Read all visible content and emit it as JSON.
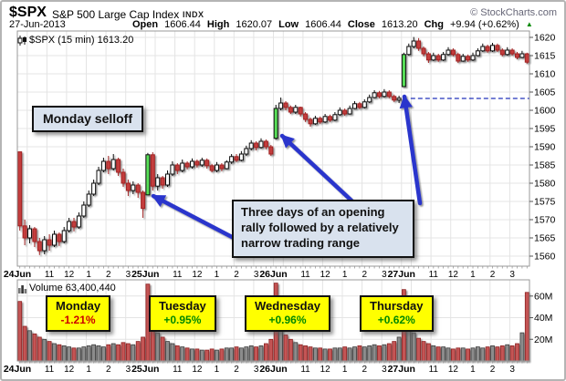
{
  "header": {
    "symbol": "$SPX",
    "name": "S&P 500 Large Cap Index",
    "exchange": "INDX",
    "credit": "© StockCharts.com",
    "date": "27-Jun-2013",
    "open_label": "Open",
    "open": "1606.44",
    "high_label": "High",
    "high": "1620.07",
    "low_label": "Low",
    "low": "1606.44",
    "close_label": "Close",
    "close": "1613.20",
    "chg_label": "Chg",
    "chg": "+9.94 (+0.62%)",
    "chg_direction": "up",
    "chg_triangle": "▲"
  },
  "main_chart_label": "$SPX (15 min) 1613.20",
  "volume_label": "Volume 63,400,440",
  "annotations": {
    "monday_selloff": "Monday selloff",
    "three_days": "Three days of an opening rally followed by a relatively narrow trading range",
    "arrows": [
      {
        "from": [
          254,
          259
        ],
        "to": [
          166,
          213
        ],
        "points_at": "25Jun opening green candle"
      },
      {
        "from": [
          383,
          218
        ],
        "to": [
          307,
          147
        ],
        "points_at": "26Jun opening green candle"
      },
      {
        "from": [
          458,
          221
        ],
        "to": [
          441,
          104
        ],
        "points_at": "27Jun opening gap at dashed line"
      }
    ]
  },
  "day_labels": [
    {
      "name": "Monday",
      "pct": "-1.21%",
      "color": "#cc0000"
    },
    {
      "name": "Tuesday",
      "pct": "+0.95%",
      "color": "#008800"
    },
    {
      "name": "Wednesday",
      "pct": "+0.96%",
      "color": "#008800"
    },
    {
      "name": "Thursday",
      "pct": "+0.62%",
      "color": "#008800"
    }
  ],
  "colors": {
    "up_candle": "#ffffff",
    "down_candle": "#c43c3c",
    "down_stroke": "#a02424",
    "highlight_candle": "#58e058",
    "candle_stroke": "#111111",
    "volume_up": "#8c8c8c",
    "volume_up_stroke": "#3c3c3c",
    "volume_down": "#c45454",
    "volume_down_stroke": "#8c2424",
    "arrow": "#2a35cc",
    "grid": "#e4e4e4",
    "border": "#999999",
    "dashed_line": "#2233bb",
    "positive": "#008800",
    "negative": "#cc0000"
  },
  "chart_data": {
    "type": "candlestick+volume",
    "symbol": "$SPX",
    "timeframe": "15 min",
    "last_price": 1613.2,
    "y_axis": {
      "ticks": [
        1560,
        1565,
        1570,
        1575,
        1580,
        1585,
        1590,
        1595,
        1600,
        1605,
        1610,
        1615,
        1620
      ],
      "min": 1557.25,
      "max": 1621.75
    },
    "volume_axis": {
      "ticks": [
        {
          "v": 20,
          "label": "20M"
        },
        {
          "v": 40,
          "label": "40M"
        },
        {
          "v": 60,
          "label": "60M"
        }
      ],
      "max": 75
    },
    "x_axis": {
      "hour_labels": [
        "11",
        "12",
        "1",
        "2",
        "3"
      ],
      "hour_bar_indices": [
        6,
        10,
        14,
        18,
        22
      ],
      "bars_per_day": 26
    },
    "dashed_line": {
      "price": 1603.25,
      "from_bar": 79
    },
    "highlight_first_bar_of_day": true,
    "days": [
      {
        "date": "24Jun",
        "weekday": "Monday",
        "change_pct": "-1.21%",
        "candles": [
          [
            1588.6,
            1588.6,
            1567.0,
            1568.3
          ],
          [
            1568.3,
            1570.0,
            1563.0,
            1565.0
          ],
          [
            1565.0,
            1568.5,
            1563.5,
            1567.5
          ],
          [
            1567.5,
            1568.0,
            1562.5,
            1564.0
          ],
          [
            1564.0,
            1565.0,
            1560.3,
            1561.5
          ],
          [
            1561.5,
            1565.5,
            1560.5,
            1564.5
          ],
          [
            1564.5,
            1566.0,
            1561.5,
            1563.0
          ],
          [
            1563.0,
            1567.0,
            1562.5,
            1566.0
          ],
          [
            1566.0,
            1566.5,
            1562.8,
            1564.0
          ],
          [
            1564.0,
            1568.0,
            1563.5,
            1567.0
          ],
          [
            1567.0,
            1570.5,
            1566.5,
            1569.5
          ],
          [
            1569.5,
            1570.5,
            1566.8,
            1568.0
          ],
          [
            1568.0,
            1572.0,
            1567.5,
            1571.0
          ],
          [
            1571.0,
            1575.0,
            1570.5,
            1574.0
          ],
          [
            1574.0,
            1578.0,
            1573.5,
            1577.0
          ],
          [
            1577.0,
            1581.0,
            1576.5,
            1580.0
          ],
          [
            1580.0,
            1584.5,
            1579.5,
            1583.5
          ],
          [
            1583.5,
            1587.0,
            1583.0,
            1586.0
          ],
          [
            1586.0,
            1587.5,
            1582.5,
            1584.0
          ],
          [
            1584.0,
            1588.0,
            1583.5,
            1586.5
          ],
          [
            1586.5,
            1587.0,
            1582.0,
            1583.0
          ],
          [
            1583.0,
            1584.0,
            1579.0,
            1580.0
          ],
          [
            1580.0,
            1581.0,
            1576.5,
            1578.0
          ],
          [
            1578.0,
            1580.5,
            1577.0,
            1579.5
          ],
          [
            1579.5,
            1580.0,
            1576.0,
            1577.5
          ],
          [
            1577.5,
            1578.0,
            1570.5,
            1573.1
          ]
        ],
        "volumes": [
          55,
          32,
          28,
          25,
          22,
          20,
          18,
          16,
          15,
          14,
          13,
          12,
          12,
          13,
          14,
          15,
          14,
          13,
          15,
          16,
          15,
          17,
          16,
          15,
          18,
          22
        ]
      },
      {
        "date": "25Jun",
        "weekday": "Tuesday",
        "change_pct": "+0.95%",
        "candles": [
          [
            1576.8,
            1588.3,
            1576.8,
            1587.8
          ],
          [
            1587.8,
            1588.5,
            1578.0,
            1579.2
          ],
          [
            1579.2,
            1582.5,
            1578.0,
            1581.5
          ],
          [
            1581.5,
            1582.0,
            1578.5,
            1579.5
          ],
          [
            1579.5,
            1583.5,
            1579.0,
            1582.5
          ],
          [
            1582.5,
            1586.0,
            1582.0,
            1585.0
          ],
          [
            1585.0,
            1585.5,
            1582.5,
            1583.5
          ],
          [
            1583.5,
            1586.5,
            1583.0,
            1585.5
          ],
          [
            1585.5,
            1586.0,
            1583.8,
            1584.5
          ],
          [
            1584.5,
            1586.8,
            1584.0,
            1586.0
          ],
          [
            1586.0,
            1586.5,
            1584.3,
            1585.0
          ],
          [
            1585.0,
            1587.0,
            1584.5,
            1586.3
          ],
          [
            1586.3,
            1586.8,
            1584.0,
            1584.8
          ],
          [
            1584.8,
            1585.3,
            1583.0,
            1583.5
          ],
          [
            1583.5,
            1585.8,
            1583.0,
            1585.0
          ],
          [
            1585.0,
            1585.5,
            1583.3,
            1584.0
          ],
          [
            1584.0,
            1586.3,
            1583.8,
            1585.8
          ],
          [
            1585.8,
            1588.0,
            1585.3,
            1587.3
          ],
          [
            1587.3,
            1588.0,
            1585.8,
            1586.3
          ],
          [
            1586.3,
            1588.8,
            1586.0,
            1588.0
          ],
          [
            1588.0,
            1590.3,
            1587.5,
            1589.5
          ],
          [
            1589.5,
            1591.8,
            1589.0,
            1591.0
          ],
          [
            1591.0,
            1591.5,
            1589.0,
            1589.8
          ],
          [
            1589.8,
            1592.3,
            1589.5,
            1591.5
          ],
          [
            1591.5,
            1592.0,
            1589.3,
            1590.0
          ],
          [
            1590.0,
            1590.5,
            1587.5,
            1588.0
          ]
        ],
        "volumes": [
          71,
          44,
          26,
          22,
          18,
          16,
          14,
          13,
          12,
          11,
          11,
          10,
          10,
          11,
          10,
          11,
          12,
          12,
          13,
          12,
          13,
          14,
          13,
          14,
          16,
          20
        ]
      },
      {
        "date": "26Jun",
        "weekday": "Wednesday",
        "change_pct": "+0.96%",
        "candles": [
          [
            1592.3,
            1601.5,
            1592.0,
            1600.5
          ],
          [
            1600.5,
            1603.5,
            1600.0,
            1602.0
          ],
          [
            1602.0,
            1602.5,
            1600.0,
            1600.8
          ],
          [
            1600.8,
            1601.3,
            1599.0,
            1599.5
          ],
          [
            1599.5,
            1601.5,
            1599.0,
            1600.8
          ],
          [
            1600.8,
            1601.0,
            1598.3,
            1599.0
          ],
          [
            1599.0,
            1599.5,
            1596.8,
            1597.5
          ],
          [
            1597.5,
            1598.0,
            1595.5,
            1596.3
          ],
          [
            1596.3,
            1598.5,
            1596.0,
            1597.8
          ],
          [
            1597.8,
            1598.3,
            1596.3,
            1596.8
          ],
          [
            1596.8,
            1599.0,
            1596.5,
            1598.3
          ],
          [
            1598.3,
            1598.8,
            1596.8,
            1597.3
          ],
          [
            1597.3,
            1599.5,
            1597.0,
            1598.8
          ],
          [
            1598.8,
            1600.8,
            1598.5,
            1600.0
          ],
          [
            1600.0,
            1600.5,
            1598.5,
            1599.0
          ],
          [
            1599.0,
            1601.3,
            1598.8,
            1600.5
          ],
          [
            1600.5,
            1602.5,
            1600.3,
            1601.8
          ],
          [
            1601.8,
            1602.3,
            1600.3,
            1600.8
          ],
          [
            1600.8,
            1603.0,
            1600.5,
            1602.3
          ],
          [
            1602.3,
            1604.3,
            1602.0,
            1603.5
          ],
          [
            1603.5,
            1605.5,
            1603.3,
            1604.8
          ],
          [
            1604.8,
            1605.3,
            1603.3,
            1603.8
          ],
          [
            1603.8,
            1605.8,
            1603.5,
            1605.0
          ],
          [
            1605.0,
            1605.5,
            1603.3,
            1603.8
          ],
          [
            1603.8,
            1604.3,
            1602.3,
            1602.8
          ],
          [
            1602.8,
            1604.0,
            1602.0,
            1603.3
          ]
        ],
        "volumes": [
          72,
          48,
          24,
          20,
          17,
          15,
          14,
          13,
          12,
          12,
          11,
          11,
          12,
          12,
          13,
          12,
          13,
          14,
          13,
          14,
          15,
          14,
          15,
          16,
          18,
          22
        ]
      },
      {
        "date": "27Jun",
        "weekday": "Thursday",
        "change_pct": "+0.62%",
        "candles": [
          [
            1606.5,
            1615.8,
            1606.4,
            1615.3
          ],
          [
            1615.3,
            1618.3,
            1615.0,
            1617.5
          ],
          [
            1617.5,
            1620.1,
            1617.0,
            1619.0
          ],
          [
            1619.0,
            1619.8,
            1616.3,
            1617.0
          ],
          [
            1617.0,
            1617.5,
            1614.8,
            1615.5
          ],
          [
            1615.5,
            1616.0,
            1613.0,
            1613.8
          ],
          [
            1613.8,
            1615.8,
            1613.5,
            1615.0
          ],
          [
            1615.0,
            1615.5,
            1613.3,
            1613.8
          ],
          [
            1613.8,
            1616.0,
            1613.5,
            1615.3
          ],
          [
            1615.3,
            1617.3,
            1615.0,
            1616.5
          ],
          [
            1616.5,
            1617.0,
            1614.8,
            1615.3
          ],
          [
            1615.3,
            1615.8,
            1613.0,
            1613.5
          ],
          [
            1613.5,
            1615.5,
            1613.3,
            1614.8
          ],
          [
            1614.8,
            1615.3,
            1613.3,
            1613.8
          ],
          [
            1613.8,
            1615.8,
            1613.5,
            1615.0
          ],
          [
            1615.0,
            1617.0,
            1614.8,
            1616.3
          ],
          [
            1616.3,
            1618.3,
            1616.0,
            1617.5
          ],
          [
            1617.5,
            1618.0,
            1615.8,
            1616.3
          ],
          [
            1616.3,
            1618.5,
            1616.0,
            1617.8
          ],
          [
            1617.8,
            1618.3,
            1616.0,
            1616.5
          ],
          [
            1616.5,
            1617.0,
            1614.8,
            1615.3
          ],
          [
            1615.3,
            1617.3,
            1615.0,
            1616.5
          ],
          [
            1616.5,
            1617.0,
            1615.0,
            1615.5
          ],
          [
            1615.5,
            1616.0,
            1614.0,
            1614.5
          ],
          [
            1614.5,
            1616.3,
            1614.3,
            1615.5
          ],
          [
            1615.5,
            1615.8,
            1612.8,
            1613.2
          ]
        ],
        "volumes": [
          66,
          33,
          26,
          21,
          18,
          16,
          14,
          13,
          13,
          12,
          11,
          12,
          12,
          11,
          12,
          13,
          12,
          13,
          14,
          13,
          14,
          15,
          14,
          16,
          26,
          63.4
        ]
      }
    ]
  }
}
